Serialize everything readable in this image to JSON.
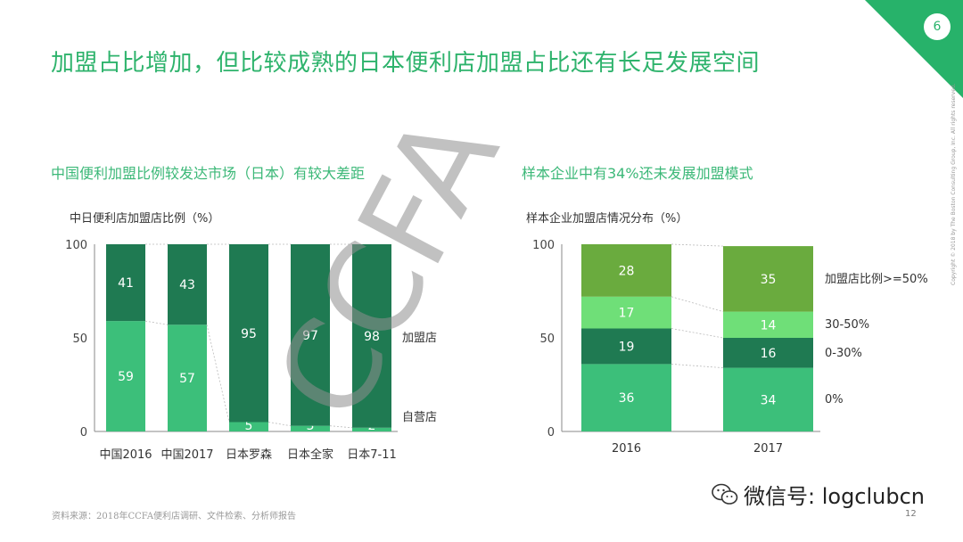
{
  "title": "加盟占比增加，但比较成熟的日本便利店加盟占比还有长足发展空间",
  "page_badge": "6",
  "left": {
    "subtitle": "中国便利加盟比例较发达市场（日本）有较大差距",
    "chart_title": "中日便利店加盟店比例（%）"
  },
  "right": {
    "subtitle": "样本企业中有34%还未发展加盟模式",
    "chart_title": "样本企业加盟店情况分布（%）"
  },
  "watermark_text": "CCFA",
  "source": "资料来源：2018年CCFA便利店调研、文件检索、分析师报告",
  "page_number": "12",
  "copyright": "Copyright © 2018 by The Boston Consulting Group, Inc. All rights reserved.",
  "wechat": "微信号: logclubcn",
  "colors": {
    "accent": "#27b26a",
    "franchise": "#1f7a52",
    "self": "#3cbf7a",
    "light": "#6fdf78",
    "mid": "#6aab3e"
  },
  "chart_data": [
    {
      "type": "bar",
      "stacked": true,
      "title": "中日便利店加盟店比例（%）",
      "categories": [
        "中国2016",
        "中国2017",
        "日本罗森",
        "日本全家",
        "日本7-11"
      ],
      "series": [
        {
          "name": "自营店",
          "values": [
            59,
            57,
            5,
            3,
            2
          ]
        },
        {
          "name": "加盟店",
          "values": [
            41,
            43,
            95,
            97,
            98
          ]
        }
      ],
      "yticks": [
        "0",
        "50",
        "100"
      ],
      "ylim": [
        0,
        100
      ]
    },
    {
      "type": "bar",
      "stacked": true,
      "title": "样本企业加盟店情况分布（%）",
      "categories": [
        "2016",
        "2017"
      ],
      "series": [
        {
          "name": "0%",
          "values": [
            36,
            34
          ]
        },
        {
          "name": "0-30%",
          "values": [
            19,
            16
          ]
        },
        {
          "name": "30-50%",
          "values": [
            17,
            14
          ]
        },
        {
          "name": "加盟店比例>=50%",
          "values": [
            28,
            35
          ]
        }
      ],
      "yticks": [
        "0",
        "50",
        "100"
      ],
      "ylim": [
        0,
        100
      ]
    }
  ]
}
